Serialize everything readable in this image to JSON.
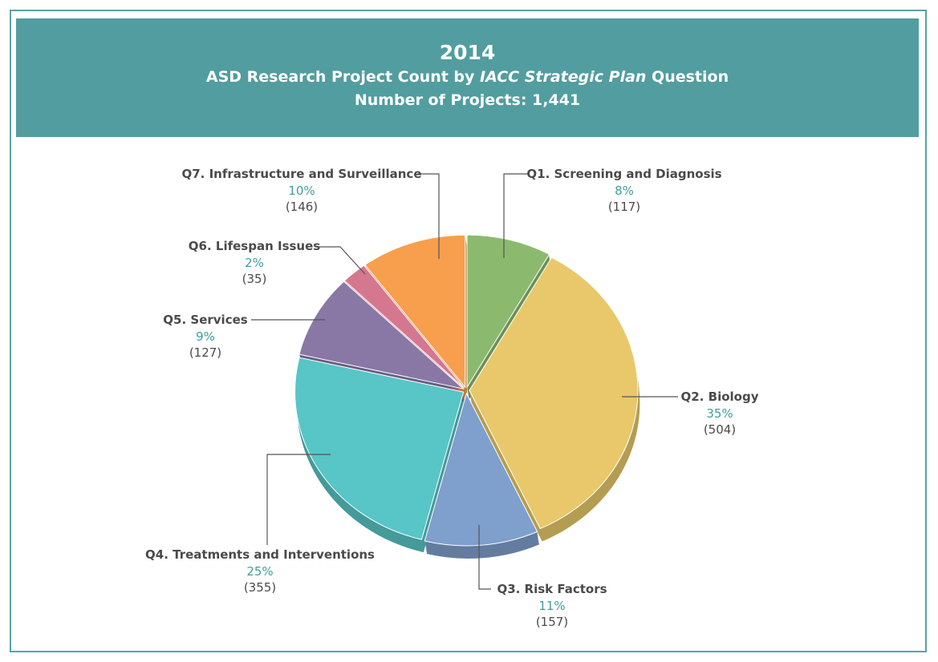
{
  "header": {
    "year": "2014",
    "subtitle_pre": "ASD Research Project Count by ",
    "subtitle_italic": "IACC Strategic Plan",
    "subtitle_post": " Question",
    "count": "Number of Projects: 1,441"
  },
  "colors": {
    "header_bg": "#529d9f",
    "percent_text": "#3f9ea0",
    "label_text": "#4a4a4a"
  },
  "chart_data": {
    "type": "pie",
    "title": "2014 ASD Research Project Count by IACC Strategic Plan Question",
    "total": 1441,
    "start": "12 o'clock, clockwise",
    "slices": [
      {
        "label": "Q1. Screening and Diagnosis",
        "percent": "8%",
        "count": "(117)",
        "value": 117,
        "color": "#8bba6e"
      },
      {
        "label": "Q2. Biology",
        "percent": "35%",
        "count": "(504)",
        "value": 504,
        "color": "#e8c86a"
      },
      {
        "label": "Q3. Risk Factors",
        "percent": "11%",
        "count": "(157)",
        "value": 157,
        "color": "#7f9fcc"
      },
      {
        "label": "Q4. Treatments and Interventions",
        "percent": "25%",
        "count": "(355)",
        "value": 355,
        "color": "#58c5c6"
      },
      {
        "label": "Q5. Services",
        "percent": "9%",
        "count": "(127)",
        "value": 127,
        "color": "#8978a6"
      },
      {
        "label": "Q6. Lifespan Issues",
        "percent": "2%",
        "count": "(35)",
        "value": 35,
        "color": "#d67790"
      },
      {
        "label": "Q7. Infrastructure and Surveillance",
        "percent": "10%",
        "count": "(146)",
        "value": 146,
        "color": "#f79f4d"
      }
    ]
  }
}
